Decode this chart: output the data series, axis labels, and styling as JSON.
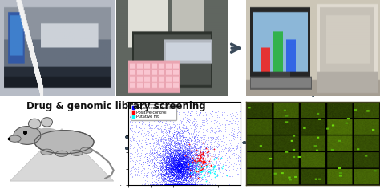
{
  "bg_color": "#ffffff",
  "title_text": "Drug & genomic library screening",
  "title_fontsize": 8.5,
  "title_fontweight": "bold",
  "fig_width": 4.74,
  "fig_height": 2.36,
  "dpi": 100,
  "scatter_legend": [
    "Experimental value",
    "Positive control",
    "Putative hit"
  ],
  "scatter_colors": [
    "blue",
    "red",
    "cyan"
  ],
  "arrow_color": "#3a4a5a",
  "photo1_bg": "#8090a0",
  "photo2_bg": "#606860",
  "photo3_bg": "#b0a898",
  "grid_bg": "#2a2000"
}
